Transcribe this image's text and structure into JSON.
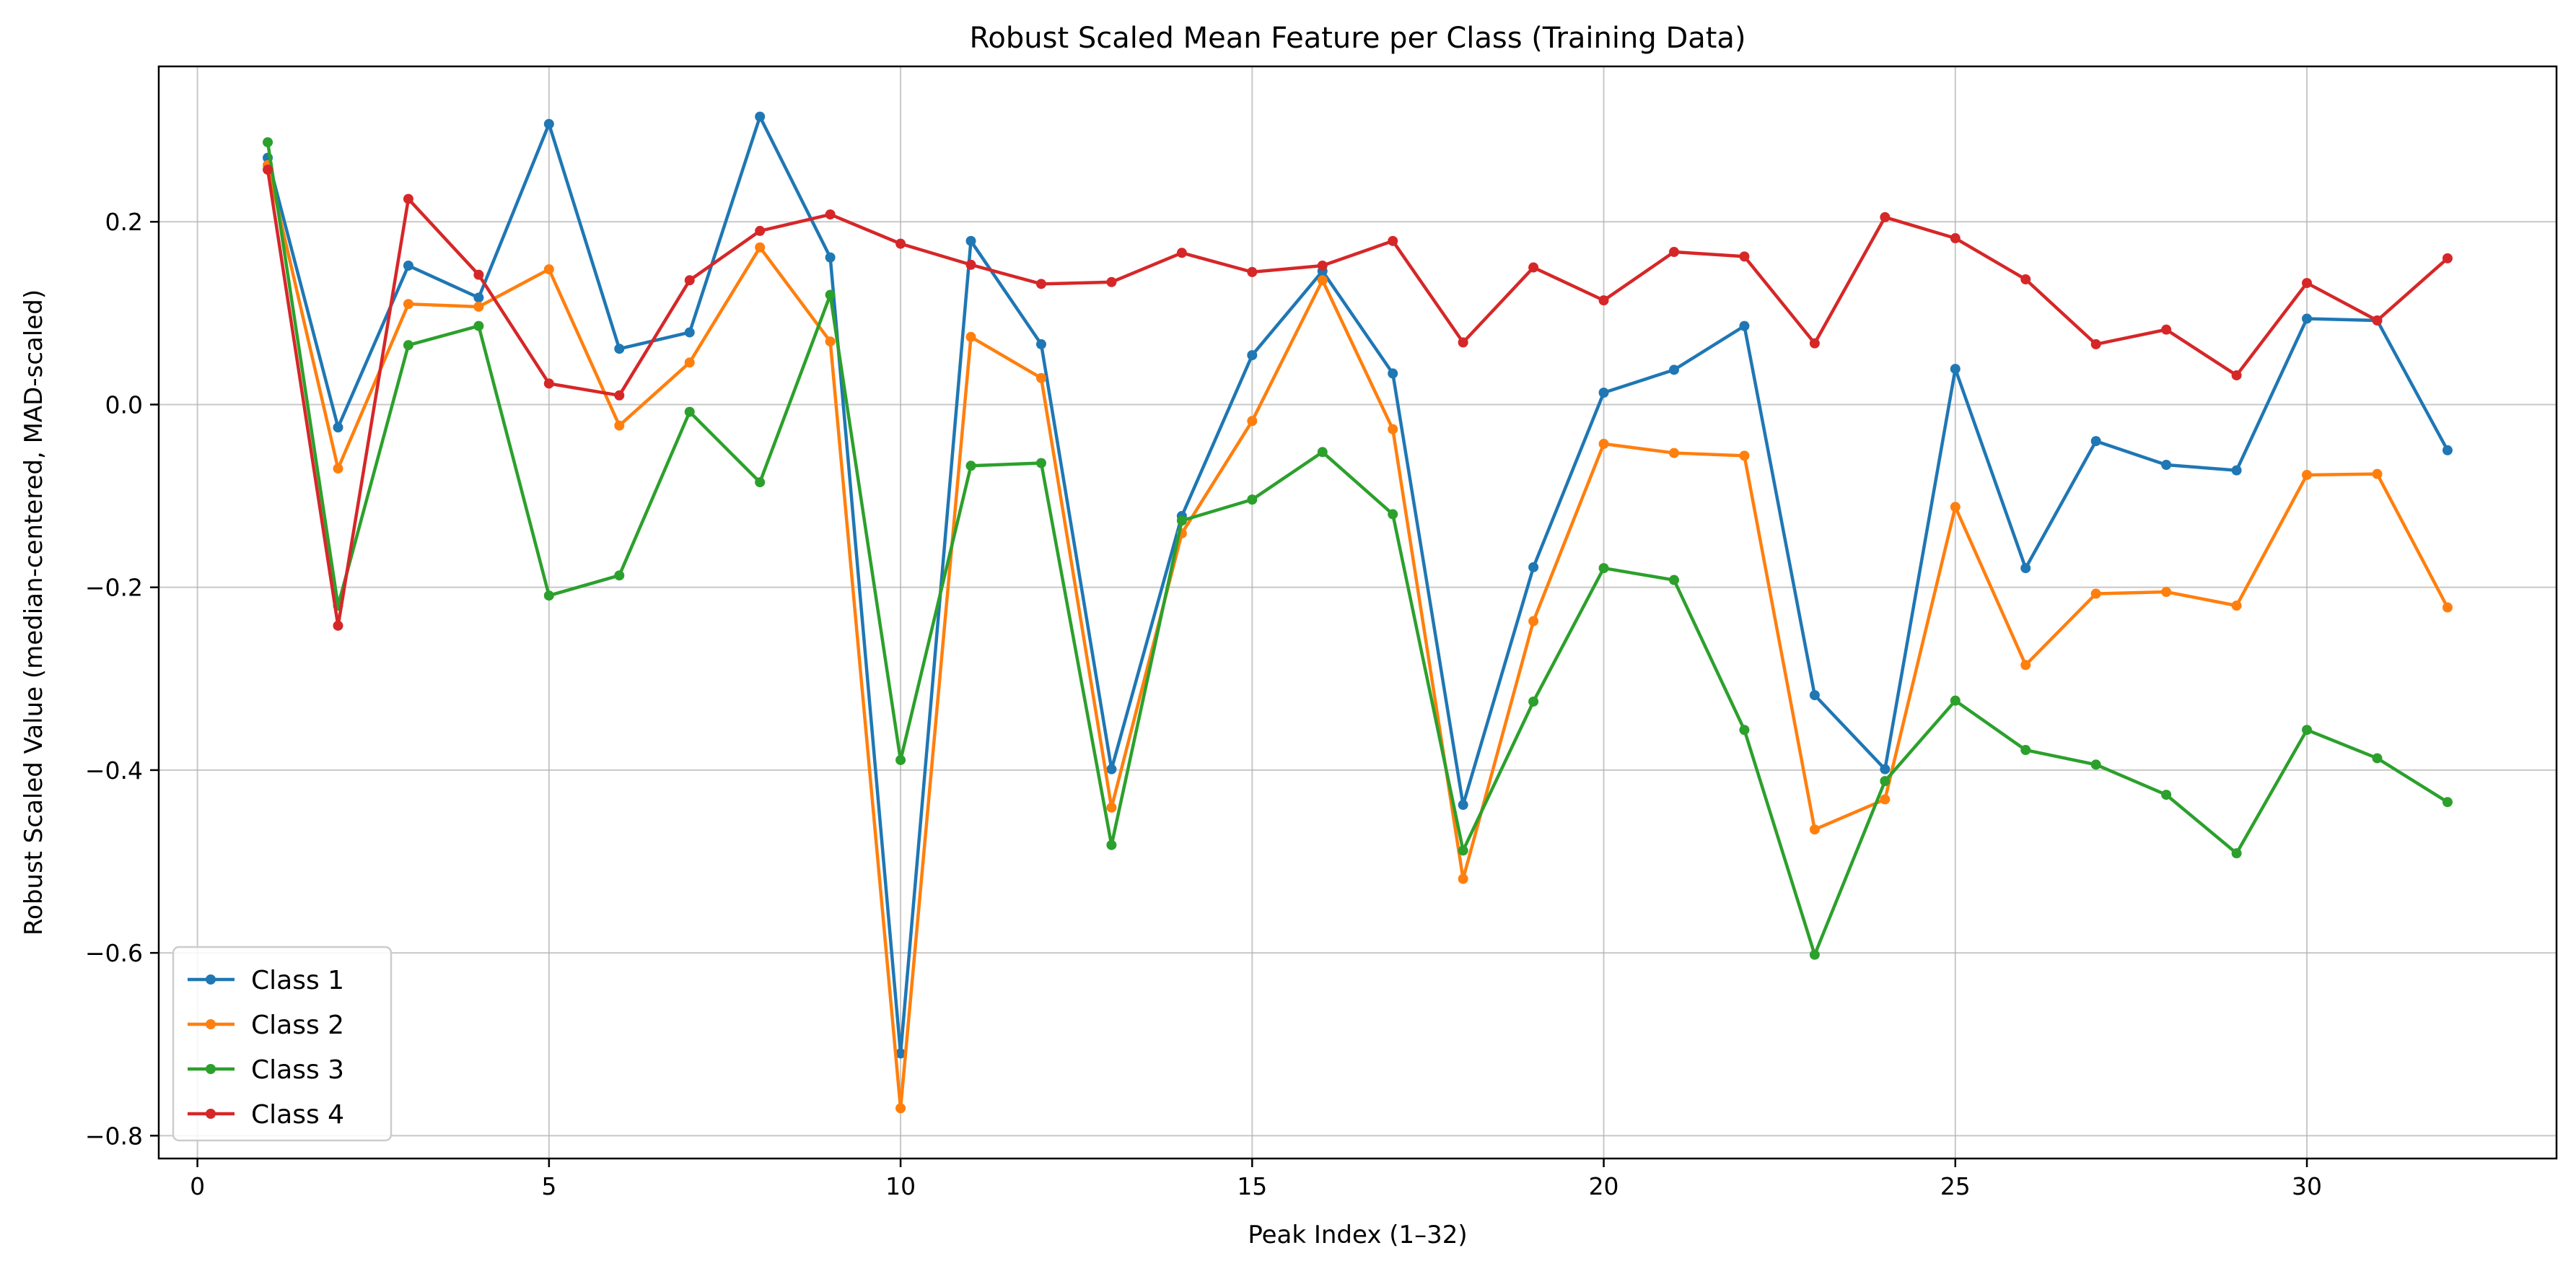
{
  "chart_data": {
    "type": "line",
    "title": "Robust Scaled Mean Feature per Class (Training Data)",
    "xlabel": "Peak Index (1–32)",
    "ylabel": "Robust Scaled Value (median-centered, MAD-scaled)",
    "xlim": [
      -0.55,
      33.55
    ],
    "ylim": [
      -0.825,
      0.37
    ],
    "xticks": [
      0,
      5,
      10,
      15,
      20,
      25,
      30
    ],
    "yticks": [
      -0.8,
      -0.6,
      -0.4,
      -0.2,
      0.0,
      0.2
    ],
    "ytick_labels": [
      "−0.8",
      "−0.6",
      "−0.4",
      "−0.2",
      "0.0",
      "0.2"
    ],
    "grid": true,
    "legend_position": "lower-left",
    "x": [
      1,
      2,
      3,
      4,
      5,
      6,
      7,
      8,
      9,
      10,
      11,
      12,
      13,
      14,
      15,
      16,
      17,
      18,
      19,
      20,
      21,
      22,
      23,
      24,
      25,
      26,
      27,
      28,
      29,
      30,
      31,
      32
    ],
    "series": [
      {
        "name": "Class 1",
        "color": "#1f77b4",
        "values": [
          0.27,
          -0.025,
          0.152,
          0.117,
          0.307,
          0.061,
          0.079,
          0.315,
          0.161,
          -0.71,
          0.179,
          0.066,
          -0.399,
          -0.122,
          0.054,
          0.146,
          0.034,
          -0.438,
          -0.178,
          0.013,
          0.038,
          0.086,
          -0.318,
          -0.399,
          0.039,
          -0.179,
          -0.04,
          -0.066,
          -0.072,
          0.094,
          0.092,
          -0.05
        ]
      },
      {
        "name": "Class 2",
        "color": "#ff7f0e",
        "values": [
          0.262,
          -0.07,
          0.11,
          0.107,
          0.148,
          -0.023,
          0.046,
          0.172,
          0.069,
          -0.77,
          0.074,
          0.029,
          -0.441,
          -0.141,
          -0.018,
          0.136,
          -0.027,
          -0.519,
          -0.237,
          -0.043,
          -0.053,
          -0.056,
          -0.465,
          -0.432,
          -0.112,
          -0.285,
          -0.207,
          -0.205,
          -0.22,
          -0.077,
          -0.076,
          -0.222
        ]
      },
      {
        "name": "Class 3",
        "color": "#2ca02c",
        "values": [
          0.287,
          -0.22,
          0.065,
          0.086,
          -0.209,
          -0.187,
          -0.008,
          -0.085,
          0.12,
          -0.389,
          -0.067,
          -0.064,
          -0.482,
          -0.127,
          -0.104,
          -0.052,
          -0.12,
          -0.488,
          -0.325,
          -0.179,
          -0.192,
          -0.356,
          -0.602,
          -0.412,
          -0.324,
          -0.378,
          -0.394,
          -0.427,
          -0.491,
          -0.356,
          -0.387,
          -0.435
        ]
      },
      {
        "name": "Class 4",
        "color": "#d62728",
        "values": [
          0.257,
          -0.242,
          0.225,
          0.142,
          0.023,
          0.01,
          0.136,
          0.19,
          0.208,
          0.176,
          0.153,
          0.132,
          0.134,
          0.166,
          0.145,
          0.152,
          0.179,
          0.068,
          0.15,
          0.114,
          0.167,
          0.162,
          0.067,
          0.205,
          0.182,
          0.137,
          0.066,
          0.082,
          0.032,
          0.133,
          0.092,
          0.16
        ]
      }
    ]
  }
}
